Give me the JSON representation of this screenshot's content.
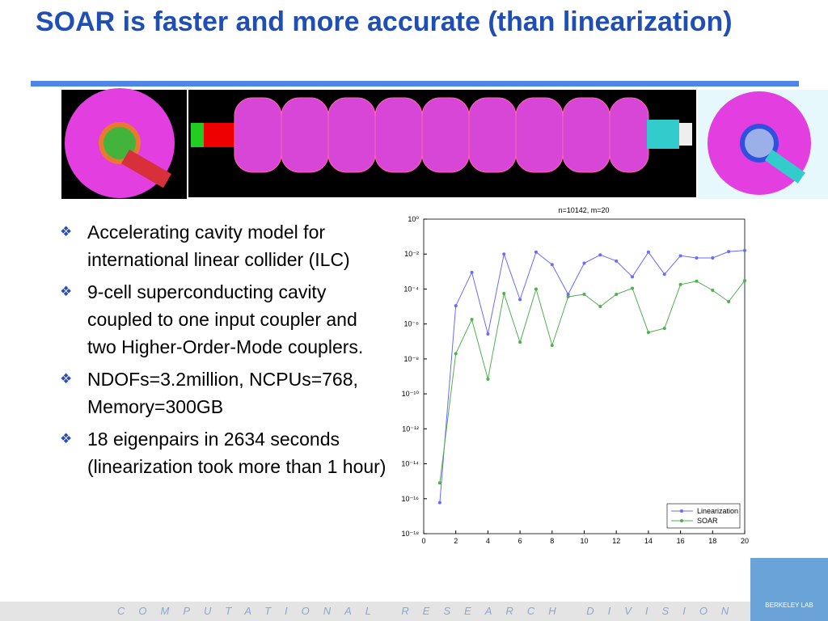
{
  "slide": {
    "title": "SOAR is faster and more accurate (than linearization)",
    "bullets": [
      "Accelerating cavity model for international linear collider (ILC)",
      "9-cell superconducting cavity coupled to one input coupler and two Higher-Order-Mode couplers.",
      "NDOFs=3.2million, NCPUs=768, Memory=300GB",
      "18 eigenpairs in 2634 seconds (linearization took more than 1 hour)"
    ],
    "footer": "COMPUTATIONAL RESEARCH DIVISION",
    "logo": "BERKELEY LAB"
  },
  "chart_data": {
    "type": "line",
    "title": "n=10142, m=20",
    "log_y": true,
    "grid": false,
    "legend": "lower right",
    "x": [
      1,
      2,
      3,
      4,
      5,
      6,
      7,
      8,
      9,
      10,
      11,
      12,
      13,
      14,
      15,
      16,
      17,
      18,
      19,
      20
    ],
    "xlim": [
      0,
      20
    ],
    "xticks": [
      0,
      2,
      4,
      6,
      8,
      10,
      12,
      14,
      16,
      18,
      20
    ],
    "ylim": [
      1e-18,
      1
    ],
    "yticks": [
      {
        "value": 1,
        "label": "10⁰"
      },
      {
        "value": 0.01,
        "label": "10⁻²"
      },
      {
        "value": 0.0001,
        "label": "10⁻⁴"
      },
      {
        "value": 1e-06,
        "label": "10⁻⁶"
      },
      {
        "value": 1e-08,
        "label": "10⁻⁸"
      },
      {
        "value": 1e-10,
        "label": "10⁻¹⁰"
      },
      {
        "value": 1e-12,
        "label": "10⁻¹²"
      },
      {
        "value": 1e-14,
        "label": "10⁻¹⁴"
      },
      {
        "value": 1e-16,
        "label": "10⁻¹⁶"
      },
      {
        "value": 1e-18,
        "label": "10⁻¹⁸"
      }
    ],
    "series": [
      {
        "name": "Linearization",
        "color": "#6a6aff",
        "values": [
          6e-17,
          1.1e-05,
          0.0009,
          2.7e-07,
          0.01,
          2.5e-05,
          0.013,
          0.0025,
          5e-05,
          0.003,
          0.009,
          0.004,
          0.0005,
          0.013,
          0.0007,
          0.008,
          0.006,
          0.006,
          0.014,
          0.016
        ]
      },
      {
        "name": "SOAR",
        "color": "#4fb04f",
        "values": [
          8e-16,
          2e-08,
          1.8e-06,
          7e-10,
          5.5e-05,
          9e-08,
          0.0001,
          6e-08,
          3.6e-05,
          5e-05,
          1e-05,
          5e-05,
          0.00011,
          3.3e-07,
          5.6e-07,
          0.00018,
          0.00028,
          8.5e-05,
          1.9e-05,
          0.0003
        ]
      }
    ]
  }
}
